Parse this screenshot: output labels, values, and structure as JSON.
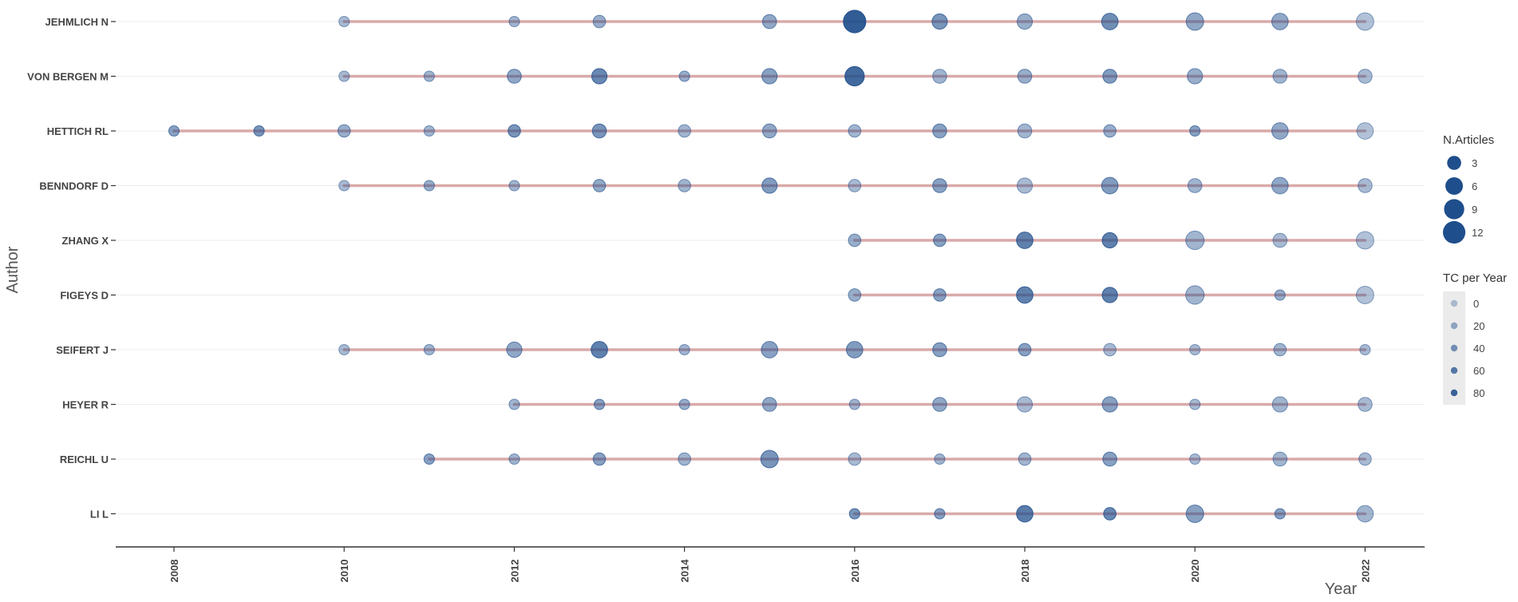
{
  "chart_data": {
    "type": "scatter",
    "xlabel": "Year",
    "ylabel": "Author",
    "xlim": [
      2007.5,
      2022.5
    ],
    "x_ticks": [
      2008,
      2010,
      2012,
      2014,
      2016,
      2018,
      2020,
      2022
    ],
    "authors": [
      "JEHMLICH N",
      "VON BERGEN M",
      "HETTICH RL",
      "BENNDORF D",
      "ZHANG X",
      "FIGEYS D",
      "SEIFERT J",
      "HEYER R",
      "REICHL U",
      "LI L"
    ],
    "series": [
      {
        "name": "JEHMLICH N",
        "points": [
          {
            "year": 2010,
            "articles": 1,
            "tc": 10
          },
          {
            "year": 2012,
            "articles": 1,
            "tc": 15
          },
          {
            "year": 2013,
            "articles": 2,
            "tc": 20
          },
          {
            "year": 2015,
            "articles": 3,
            "tc": 25
          },
          {
            "year": 2016,
            "articles": 12,
            "tc": 85
          },
          {
            "year": 2017,
            "articles": 4,
            "tc": 40
          },
          {
            "year": 2018,
            "articles": 4,
            "tc": 20
          },
          {
            "year": 2019,
            "articles": 5,
            "tc": 45
          },
          {
            "year": 2020,
            "articles": 6,
            "tc": 25
          },
          {
            "year": 2021,
            "articles": 5,
            "tc": 25
          },
          {
            "year": 2022,
            "articles": 6,
            "tc": 5
          }
        ]
      },
      {
        "name": "VON BERGEN M",
        "points": [
          {
            "year": 2010,
            "articles": 1,
            "tc": 10
          },
          {
            "year": 2011,
            "articles": 1,
            "tc": 15
          },
          {
            "year": 2012,
            "articles": 3,
            "tc": 25
          },
          {
            "year": 2013,
            "articles": 4,
            "tc": 50
          },
          {
            "year": 2014,
            "articles": 1,
            "tc": 20
          },
          {
            "year": 2015,
            "articles": 4,
            "tc": 30
          },
          {
            "year": 2016,
            "articles": 8,
            "tc": 75
          },
          {
            "year": 2017,
            "articles": 3,
            "tc": 15
          },
          {
            "year": 2018,
            "articles": 3,
            "tc": 20
          },
          {
            "year": 2019,
            "articles": 3,
            "tc": 35
          },
          {
            "year": 2020,
            "articles": 4,
            "tc": 20
          },
          {
            "year": 2021,
            "articles": 3,
            "tc": 15
          },
          {
            "year": 2022,
            "articles": 3,
            "tc": 10
          }
        ]
      },
      {
        "name": "HETTICH RL",
        "points": [
          {
            "year": 2008,
            "articles": 1,
            "tc": 30
          },
          {
            "year": 2009,
            "articles": 1,
            "tc": 40
          },
          {
            "year": 2010,
            "articles": 2,
            "tc": 20
          },
          {
            "year": 2011,
            "articles": 1,
            "tc": 15
          },
          {
            "year": 2012,
            "articles": 2,
            "tc": 40
          },
          {
            "year": 2013,
            "articles": 3,
            "tc": 40
          },
          {
            "year": 2014,
            "articles": 2,
            "tc": 15
          },
          {
            "year": 2015,
            "articles": 3,
            "tc": 25
          },
          {
            "year": 2016,
            "articles": 2,
            "tc": 15
          },
          {
            "year": 2017,
            "articles": 3,
            "tc": 30
          },
          {
            "year": 2018,
            "articles": 3,
            "tc": 15
          },
          {
            "year": 2019,
            "articles": 2,
            "tc": 20
          },
          {
            "year": 2020,
            "articles": 1,
            "tc": 30
          },
          {
            "year": 2021,
            "articles": 5,
            "tc": 25
          },
          {
            "year": 2022,
            "articles": 5,
            "tc": 5
          }
        ]
      },
      {
        "name": "BENNDORF D",
        "points": [
          {
            "year": 2010,
            "articles": 1,
            "tc": 10
          },
          {
            "year": 2011,
            "articles": 1,
            "tc": 20
          },
          {
            "year": 2012,
            "articles": 1,
            "tc": 15
          },
          {
            "year": 2013,
            "articles": 2,
            "tc": 25
          },
          {
            "year": 2014,
            "articles": 2,
            "tc": 15
          },
          {
            "year": 2015,
            "articles": 4,
            "tc": 35
          },
          {
            "year": 2016,
            "articles": 2,
            "tc": 10
          },
          {
            "year": 2017,
            "articles": 3,
            "tc": 30
          },
          {
            "year": 2018,
            "articles": 4,
            "tc": 10
          },
          {
            "year": 2019,
            "articles": 5,
            "tc": 35
          },
          {
            "year": 2020,
            "articles": 3,
            "tc": 15
          },
          {
            "year": 2021,
            "articles": 5,
            "tc": 25
          },
          {
            "year": 2022,
            "articles": 3,
            "tc": 10
          }
        ]
      },
      {
        "name": "ZHANG X",
        "points": [
          {
            "year": 2016,
            "articles": 2,
            "tc": 20
          },
          {
            "year": 2017,
            "articles": 2,
            "tc": 30
          },
          {
            "year": 2018,
            "articles": 5,
            "tc": 55
          },
          {
            "year": 2019,
            "articles": 4,
            "tc": 55
          },
          {
            "year": 2020,
            "articles": 7,
            "tc": 15
          },
          {
            "year": 2021,
            "articles": 3,
            "tc": 10
          },
          {
            "year": 2022,
            "articles": 6,
            "tc": 5
          }
        ]
      },
      {
        "name": "FIGEYS D",
        "points": [
          {
            "year": 2016,
            "articles": 2,
            "tc": 20
          },
          {
            "year": 2017,
            "articles": 2,
            "tc": 30
          },
          {
            "year": 2018,
            "articles": 5,
            "tc": 55
          },
          {
            "year": 2019,
            "articles": 4,
            "tc": 55
          },
          {
            "year": 2020,
            "articles": 7,
            "tc": 15
          },
          {
            "year": 2021,
            "articles": 1,
            "tc": 20
          },
          {
            "year": 2022,
            "articles": 6,
            "tc": 5
          }
        ]
      },
      {
        "name": "SEIFERT J",
        "points": [
          {
            "year": 2010,
            "articles": 1,
            "tc": 10
          },
          {
            "year": 2011,
            "articles": 1,
            "tc": 15
          },
          {
            "year": 2012,
            "articles": 4,
            "tc": 25
          },
          {
            "year": 2013,
            "articles": 5,
            "tc": 55
          },
          {
            "year": 2014,
            "articles": 1,
            "tc": 15
          },
          {
            "year": 2015,
            "articles": 5,
            "tc": 30
          },
          {
            "year": 2016,
            "articles": 5,
            "tc": 35
          },
          {
            "year": 2017,
            "articles": 3,
            "tc": 30
          },
          {
            "year": 2018,
            "articles": 2,
            "tc": 30
          },
          {
            "year": 2019,
            "articles": 2,
            "tc": 10
          },
          {
            "year": 2020,
            "articles": 1,
            "tc": 10
          },
          {
            "year": 2021,
            "articles": 2,
            "tc": 15
          },
          {
            "year": 2022,
            "articles": 1,
            "tc": 10
          }
        ]
      },
      {
        "name": "HEYER R",
        "points": [
          {
            "year": 2012,
            "articles": 1,
            "tc": 15
          },
          {
            "year": 2013,
            "articles": 1,
            "tc": 30
          },
          {
            "year": 2014,
            "articles": 1,
            "tc": 20
          },
          {
            "year": 2015,
            "articles": 3,
            "tc": 25
          },
          {
            "year": 2016,
            "articles": 1,
            "tc": 15
          },
          {
            "year": 2017,
            "articles": 3,
            "tc": 25
          },
          {
            "year": 2018,
            "articles": 4,
            "tc": 10
          },
          {
            "year": 2019,
            "articles": 4,
            "tc": 30
          },
          {
            "year": 2020,
            "articles": 1,
            "tc": 10
          },
          {
            "year": 2021,
            "articles": 4,
            "tc": 15
          },
          {
            "year": 2022,
            "articles": 3,
            "tc": 10
          }
        ]
      },
      {
        "name": "REICHL U",
        "points": [
          {
            "year": 2011,
            "articles": 1,
            "tc": 30
          },
          {
            "year": 2012,
            "articles": 1,
            "tc": 15
          },
          {
            "year": 2013,
            "articles": 2,
            "tc": 30
          },
          {
            "year": 2014,
            "articles": 2,
            "tc": 15
          },
          {
            "year": 2015,
            "articles": 6,
            "tc": 40
          },
          {
            "year": 2016,
            "articles": 2,
            "tc": 10
          },
          {
            "year": 2017,
            "articles": 1,
            "tc": 15
          },
          {
            "year": 2018,
            "articles": 2,
            "tc": 15
          },
          {
            "year": 2019,
            "articles": 3,
            "tc": 30
          },
          {
            "year": 2020,
            "articles": 1,
            "tc": 10
          },
          {
            "year": 2021,
            "articles": 3,
            "tc": 15
          },
          {
            "year": 2022,
            "articles": 2,
            "tc": 10
          }
        ]
      },
      {
        "name": "LI L",
        "points": [
          {
            "year": 2016,
            "articles": 1,
            "tc": 40
          },
          {
            "year": 2017,
            "articles": 1,
            "tc": 30
          },
          {
            "year": 2018,
            "articles": 5,
            "tc": 60
          },
          {
            "year": 2019,
            "articles": 2,
            "tc": 50
          },
          {
            "year": 2020,
            "articles": 6,
            "tc": 30
          },
          {
            "year": 2021,
            "articles": 1,
            "tc": 30
          },
          {
            "year": 2022,
            "articles": 5,
            "tc": 15
          }
        ]
      }
    ],
    "legend_size": {
      "title": "N.Articles",
      "values": [
        3,
        6,
        9,
        12
      ]
    },
    "legend_color": {
      "title": "TC per Year",
      "values": [
        0,
        20,
        40,
        60,
        80
      ]
    },
    "colors": {
      "point": "#1f4e8c",
      "line": "#d6a2a2",
      "grid": "#ececec",
      "axis": "#333333",
      "legend_bg": "#ebebeb"
    },
    "legend_position": "right",
    "grid": true
  }
}
